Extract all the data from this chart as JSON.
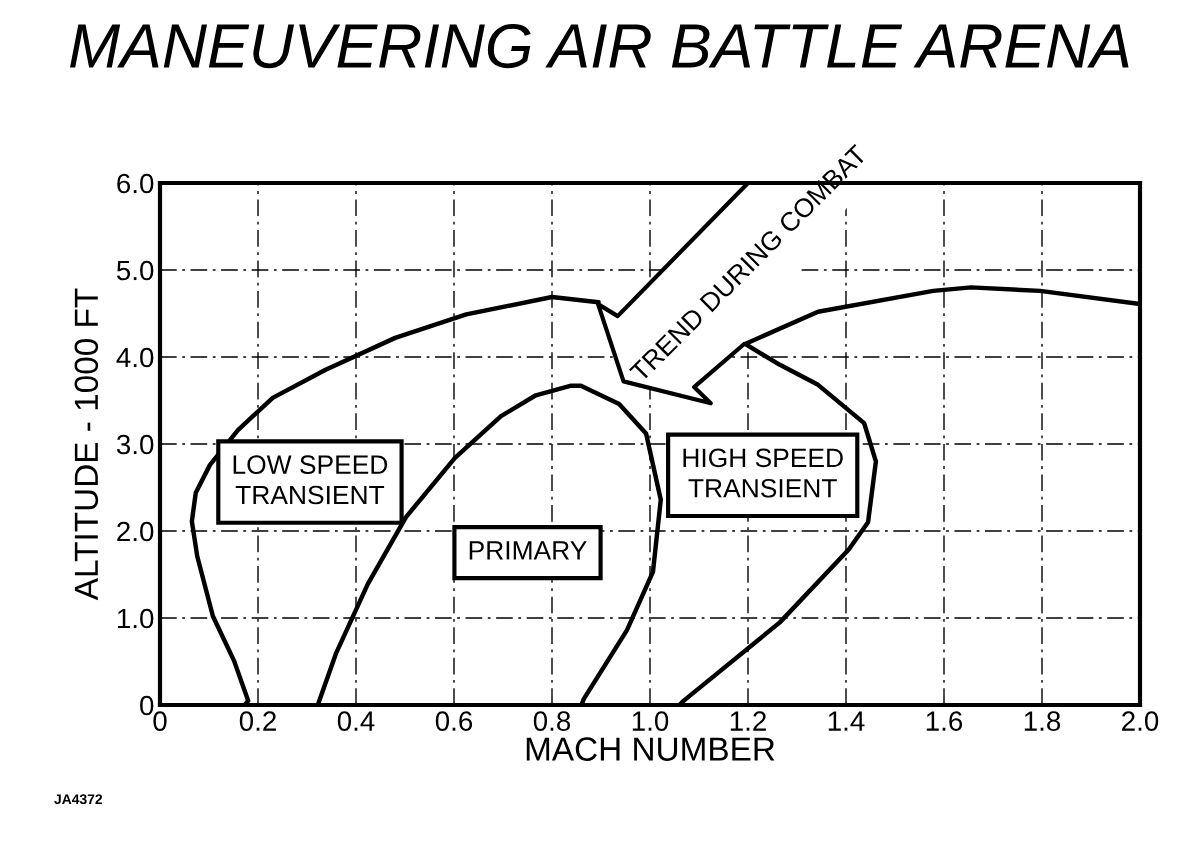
{
  "chart_data": {
    "type": "line",
    "title": "MANEUVERING AIR BATTLE ARENA",
    "xlabel": "MACH NUMBER",
    "ylabel": "ALTITUDE - 1000 FT",
    "xlim": [
      0,
      2.0
    ],
    "ylim": [
      0,
      6.0
    ],
    "xticks": [
      0,
      {
        "value": 0.2,
        "label": "0.2"
      },
      {
        "value": 0.4,
        "label": "0.4"
      },
      {
        "value": 0.6,
        "label": "0.6"
      },
      {
        "value": 0.8,
        "label": "0.8"
      },
      {
        "value": 1.0,
        "label": "1.0"
      },
      {
        "value": 1.2,
        "label": "1.2"
      },
      {
        "value": 1.4,
        "label": "1.4"
      },
      {
        "value": 1.6,
        "label": "1.6"
      },
      {
        "value": 1.8,
        "label": "1.8"
      },
      {
        "value": 2.0,
        "label": "2.0"
      }
    ],
    "yticks": [
      0,
      {
        "value": 1.0,
        "label": "1.0"
      },
      {
        "value": 2.0,
        "label": "2.0"
      },
      {
        "value": 3.0,
        "label": "3.0"
      },
      {
        "value": 4.0,
        "label": "4.0"
      },
      {
        "value": 5.0,
        "label": "5.0"
      },
      {
        "value": 6.0,
        "label": "6.0"
      }
    ],
    "grid": true,
    "legend": false,
    "marker": "none",
    "line_style": "solid",
    "series": [
      {
        "color": "#000000",
        "x": [
          0.173,
          0.18,
          0.151,
          0.108,
          0.076,
          0.065,
          0.073,
          0.102,
          0.159,
          0.23,
          0.337,
          0.48,
          0.625,
          0.8,
          0.895
        ],
        "values": [
          0,
          0.05,
          0.51,
          1.02,
          1.71,
          2.11,
          2.44,
          2.76,
          3.16,
          3.53,
          3.85,
          4.22,
          4.49,
          4.69,
          4.63
        ]
      },
      {
        "color": "#000000",
        "x": [
          1.06,
          1.069,
          1.265,
          1.406,
          1.445,
          1.461,
          1.437,
          1.343,
          1.265,
          1.194,
          1.343,
          1.578,
          1.655,
          1.796,
          2.0
        ],
        "values": [
          0,
          0.05,
          0.95,
          1.79,
          2.1,
          2.8,
          3.24,
          3.68,
          3.91,
          4.15,
          4.52,
          4.76,
          4.8,
          4.76,
          4.61
        ]
      },
      {
        "color": "#000000",
        "x": [
          0.322,
          0.359,
          0.424,
          0.502,
          0.602,
          0.696,
          0.767,
          0.839,
          0.859,
          0.937,
          0.992,
          1.022,
          1.006,
          0.953,
          0.865,
          0.86
        ],
        "values": [
          0,
          0.59,
          1.39,
          2.16,
          2.84,
          3.32,
          3.56,
          3.67,
          3.67,
          3.46,
          3.12,
          2.36,
          1.53,
          0.86,
          0.07,
          0
        ]
      }
    ],
    "annotations": [
      "LOW SPEED\nTRANSIENT",
      "PRIMARY",
      "HIGH SPEED\nTRANSIENT",
      "TREND DURING COMBAT",
      "JA4372"
    ]
  }
}
